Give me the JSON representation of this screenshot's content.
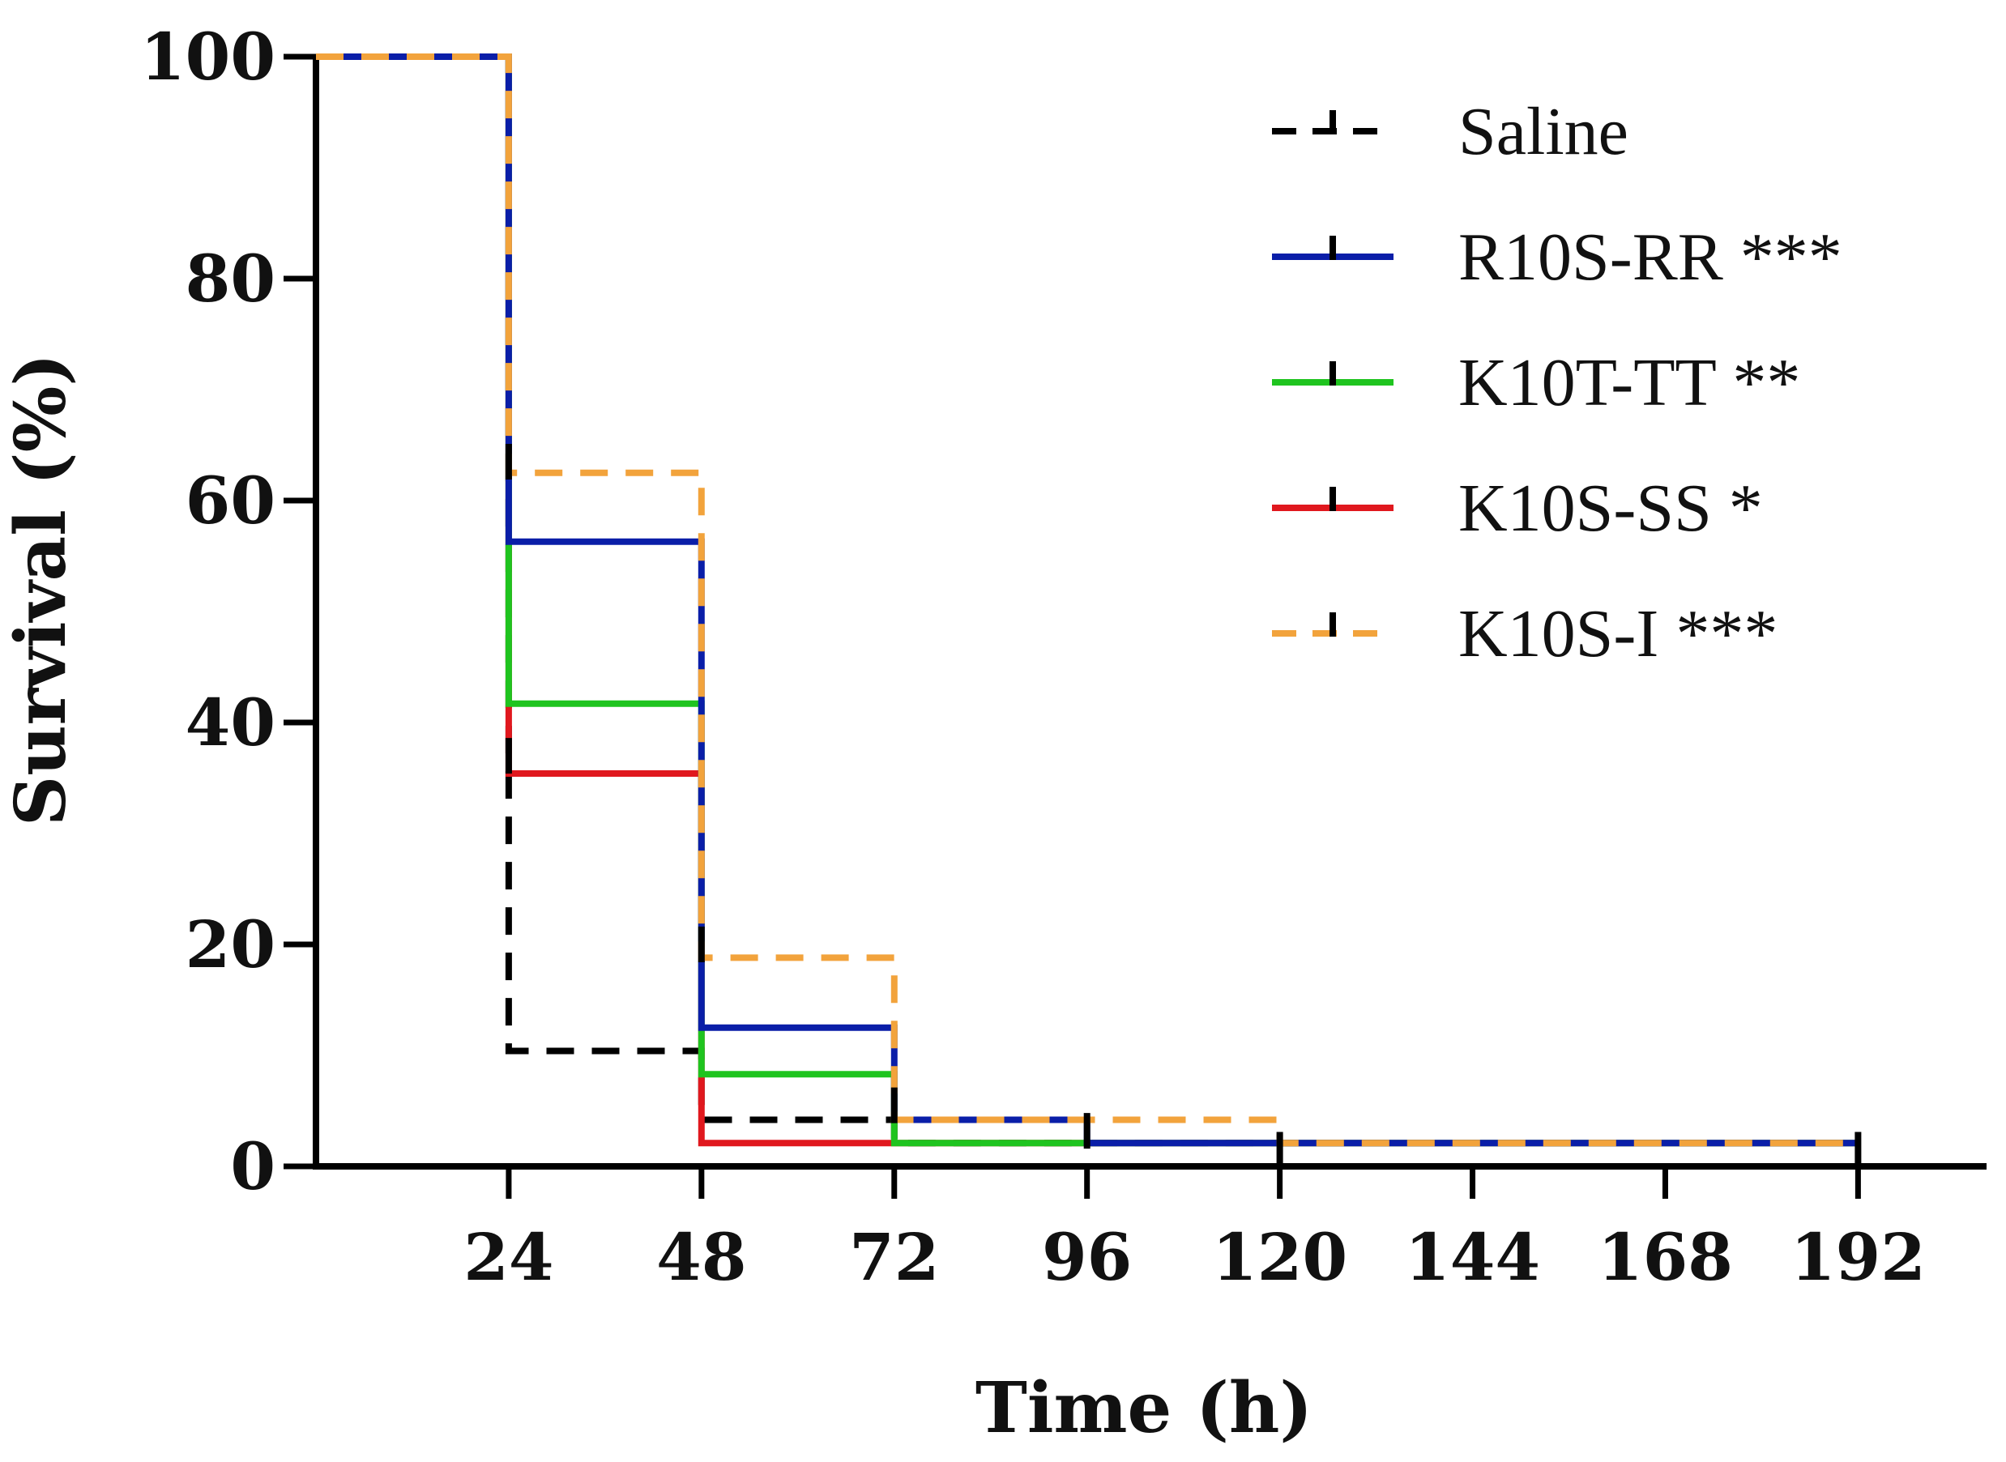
{
  "chart_data": {
    "type": "line",
    "step": true,
    "title": "",
    "xlabel": "Time (h)",
    "ylabel": "Survival (%)",
    "xlim": [
      0,
      208
    ],
    "ylim": [
      0,
      100
    ],
    "x_ticks": [
      24,
      48,
      72,
      96,
      120,
      144,
      168,
      192
    ],
    "y_ticks": [
      0,
      20,
      40,
      60,
      80,
      100
    ],
    "legend_position": "top-right",
    "series": [
      {
        "name": "Saline",
        "legend_label": "Saline",
        "color": "#000000",
        "dashed": true,
        "points": [
          [
            0,
            100
          ],
          [
            24,
            100
          ],
          [
            24,
            10.4
          ],
          [
            48,
            10.4
          ],
          [
            48,
            4.2
          ],
          [
            72,
            4.2
          ],
          [
            72,
            2.1
          ],
          [
            192,
            2.1
          ]
        ]
      },
      {
        "name": "R10S-RR",
        "legend_label": "R10S-RR ***",
        "color": "#0a1ea8",
        "dashed": false,
        "points": [
          [
            0,
            100
          ],
          [
            24,
            100
          ],
          [
            24,
            56.3
          ],
          [
            48,
            56.3
          ],
          [
            48,
            12.5
          ],
          [
            72,
            12.5
          ],
          [
            72,
            4.2
          ],
          [
            96,
            4.2
          ],
          [
            96,
            2.1
          ],
          [
            192,
            2.1
          ]
        ]
      },
      {
        "name": "K10T-TT",
        "legend_label": "K10T-TT **",
        "color": "#1fc41f",
        "dashed": false,
        "points": [
          [
            0,
            100
          ],
          [
            24,
            100
          ],
          [
            24,
            41.7
          ],
          [
            48,
            41.7
          ],
          [
            48,
            8.3
          ],
          [
            72,
            8.3
          ],
          [
            72,
            2.1
          ],
          [
            192,
            2.1
          ]
        ]
      },
      {
        "name": "K10S-SS",
        "legend_label": "K10S-SS *",
        "color": "#e0181e",
        "dashed": false,
        "points": [
          [
            0,
            100
          ],
          [
            24,
            100
          ],
          [
            24,
            35.4
          ],
          [
            48,
            35.4
          ],
          [
            48,
            2.1
          ],
          [
            192,
            2.1
          ]
        ]
      },
      {
        "name": "K10S-I",
        "legend_label": "K10S-I ***",
        "color": "#f2a33c",
        "dashed": true,
        "points": [
          [
            0,
            100
          ],
          [
            24,
            100
          ],
          [
            24,
            62.5
          ],
          [
            48,
            62.5
          ],
          [
            48,
            18.8
          ],
          [
            72,
            18.8
          ],
          [
            72,
            4.2
          ],
          [
            120,
            4.2
          ],
          [
            120,
            2.1
          ],
          [
            192,
            2.1
          ]
        ]
      }
    ],
    "censor_ticks": [
      {
        "series": "Saline",
        "x": 24,
        "y": 37
      },
      {
        "series": "Saline",
        "x": 48,
        "y": 20
      },
      {
        "series": "Saline",
        "x": 72,
        "y": 5.5
      },
      {
        "series": "Saline",
        "x": 24,
        "y": 63.5
      },
      {
        "series": "Saline",
        "x": 96,
        "y": 3.2
      },
      {
        "series": "Saline",
        "x": 120,
        "y": 1.5
      },
      {
        "series": "K10T-TT",
        "x": 192,
        "y": 1.5
      }
    ]
  }
}
